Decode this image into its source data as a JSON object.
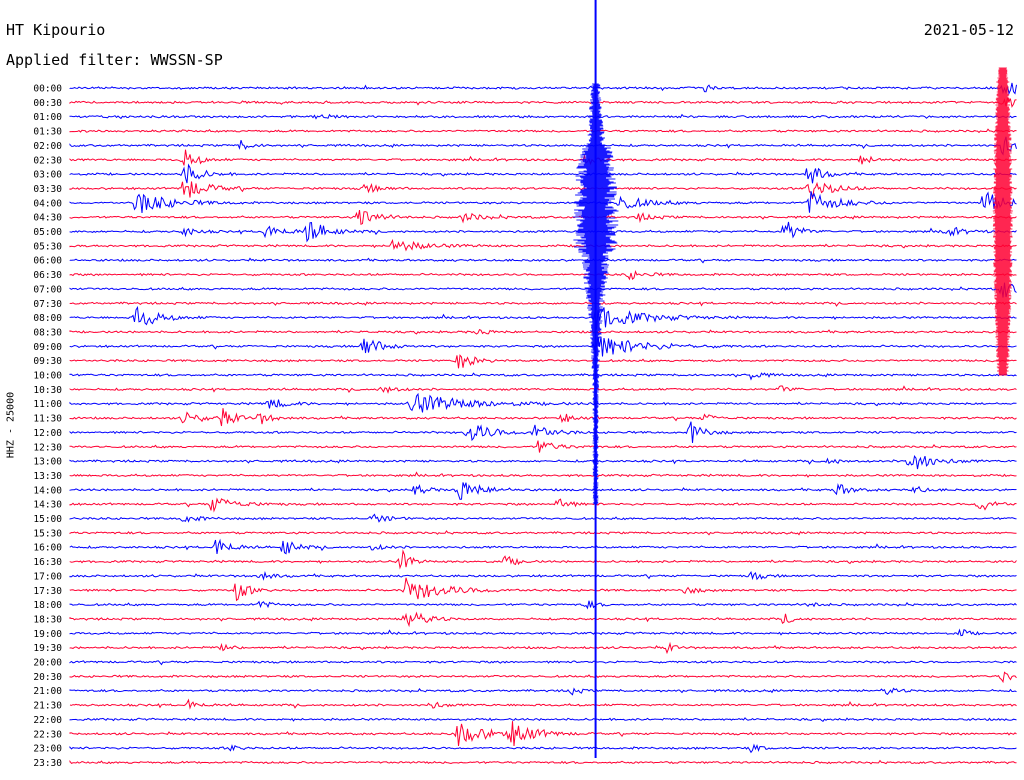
{
  "header": {
    "station": "HT Kipourio",
    "date": "2021-05-12",
    "filter": "Applied filter: WWSSN-SP"
  },
  "chart_data": {
    "type": "line",
    "ylabel": "HHZ - 25000",
    "row_labels": [
      "00:00",
      "00:30",
      "01:00",
      "01:30",
      "02:00",
      "02:30",
      "03:00",
      "03:30",
      "04:00",
      "04:30",
      "05:00",
      "05:30",
      "06:00",
      "06:30",
      "07:00",
      "07:30",
      "08:00",
      "08:30",
      "09:00",
      "09:30",
      "10:00",
      "10:30",
      "11:00",
      "11:30",
      "12:00",
      "12:30",
      "13:00",
      "13:30",
      "14:00",
      "14:30",
      "15:00",
      "15:30",
      "16:00",
      "16:30",
      "17:00",
      "17:30",
      "18:00",
      "18:30",
      "19:00",
      "19:30",
      "20:00",
      "20:30",
      "21:00",
      "21:30",
      "22:00",
      "22:30",
      "23:00",
      "23:30"
    ],
    "colors": [
      "#0000ff",
      "#ff0033"
    ],
    "events": [
      {
        "row": 0,
        "x": 0.985,
        "amp": 0.9,
        "dur": 0.015
      },
      {
        "row": 0,
        "x": 0.67,
        "amp": 0.35,
        "dur": 0.006
      },
      {
        "row": 1,
        "x": 0.985,
        "amp": 1.0,
        "dur": 0.01
      },
      {
        "row": 2,
        "x": 0.26,
        "amp": 0.35,
        "dur": 0.01
      },
      {
        "row": 4,
        "x": 0.18,
        "amp": 0.4,
        "dur": 0.01
      },
      {
        "row": 4,
        "x": 0.985,
        "amp": 1.0,
        "dur": 0.01
      },
      {
        "row": 5,
        "x": 0.12,
        "amp": 1.0,
        "dur": 0.012
      },
      {
        "row": 5,
        "x": 0.545,
        "amp": 0.5,
        "dur": 0.01
      },
      {
        "row": 5,
        "x": 0.835,
        "amp": 0.4,
        "dur": 0.012
      },
      {
        "row": 6,
        "x": 0.12,
        "amp": 1.0,
        "dur": 0.015
      },
      {
        "row": 6,
        "x": 0.78,
        "amp": 1.0,
        "dur": 0.012
      },
      {
        "row": 7,
        "x": 0.12,
        "amp": 1.0,
        "dur": 0.02
      },
      {
        "row": 7,
        "x": 0.31,
        "amp": 0.4,
        "dur": 0.015
      },
      {
        "row": 7,
        "x": 0.78,
        "amp": 1.0,
        "dur": 0.02
      },
      {
        "row": 8,
        "x": 0.07,
        "amp": 1.0,
        "dur": 0.03
      },
      {
        "row": 8,
        "x": 0.58,
        "amp": 0.6,
        "dur": 0.025
      },
      {
        "row": 8,
        "x": 0.78,
        "amp": 1.0,
        "dur": 0.025
      },
      {
        "row": 8,
        "x": 0.965,
        "amp": 1.0,
        "dur": 0.02
      },
      {
        "row": 9,
        "x": 0.305,
        "amp": 1.0,
        "dur": 0.015
      },
      {
        "row": 9,
        "x": 0.415,
        "amp": 0.35,
        "dur": 0.02
      },
      {
        "row": 9,
        "x": 0.6,
        "amp": 0.3,
        "dur": 0.015
      },
      {
        "row": 10,
        "x": 0.12,
        "amp": 0.4,
        "dur": 0.012
      },
      {
        "row": 10,
        "x": 0.205,
        "amp": 0.5,
        "dur": 0.02
      },
      {
        "row": 10,
        "x": 0.25,
        "amp": 1.0,
        "dur": 0.018
      },
      {
        "row": 10,
        "x": 0.755,
        "amp": 1.0,
        "dur": 0.012
      },
      {
        "row": 10,
        "x": 0.925,
        "amp": 0.4,
        "dur": 0.015
      },
      {
        "row": 11,
        "x": 0.34,
        "amp": 0.5,
        "dur": 0.03
      },
      {
        "row": 13,
        "x": 0.59,
        "amp": 0.4,
        "dur": 0.015
      },
      {
        "row": 14,
        "x": 0.985,
        "amp": 1.0,
        "dur": 0.01
      },
      {
        "row": 16,
        "x": 0.07,
        "amp": 1.0,
        "dur": 0.02
      },
      {
        "row": 16,
        "x": 0.555,
        "amp": 1.0,
        "dur": 0.04
      },
      {
        "row": 17,
        "x": 0.43,
        "amp": 0.3,
        "dur": 0.01
      },
      {
        "row": 18,
        "x": 0.31,
        "amp": 1.0,
        "dur": 0.015
      },
      {
        "row": 18,
        "x": 0.555,
        "amp": 1.0,
        "dur": 0.04
      },
      {
        "row": 19,
        "x": 0.41,
        "amp": 0.7,
        "dur": 0.015
      },
      {
        "row": 20,
        "x": 0.72,
        "amp": 0.4,
        "dur": 0.01
      },
      {
        "row": 21,
        "x": 0.33,
        "amp": 0.4,
        "dur": 0.01
      },
      {
        "row": 21,
        "x": 0.75,
        "amp": 0.35,
        "dur": 0.01
      },
      {
        "row": 22,
        "x": 0.21,
        "amp": 0.5,
        "dur": 0.015
      },
      {
        "row": 22,
        "x": 0.36,
        "amp": 0.9,
        "dur": 0.05
      },
      {
        "row": 23,
        "x": 0.16,
        "amp": 0.8,
        "dur": 0.012
      },
      {
        "row": 23,
        "x": 0.12,
        "amp": 0.5,
        "dur": 0.02
      },
      {
        "row": 23,
        "x": 0.2,
        "amp": 0.5,
        "dur": 0.012
      },
      {
        "row": 23,
        "x": 0.52,
        "amp": 0.4,
        "dur": 0.01
      },
      {
        "row": 23,
        "x": 0.67,
        "amp": 0.35,
        "dur": 0.01
      },
      {
        "row": 24,
        "x": 0.42,
        "amp": 1.0,
        "dur": 0.02
      },
      {
        "row": 24,
        "x": 0.49,
        "amp": 0.9,
        "dur": 0.015
      },
      {
        "row": 24,
        "x": 0.655,
        "amp": 1.0,
        "dur": 0.012
      },
      {
        "row": 25,
        "x": 0.495,
        "amp": 0.6,
        "dur": 0.015
      },
      {
        "row": 26,
        "x": 0.885,
        "amp": 1.0,
        "dur": 0.02
      },
      {
        "row": 26,
        "x": 0.8,
        "amp": 0.3,
        "dur": 0.01
      },
      {
        "row": 28,
        "x": 0.365,
        "amp": 0.5,
        "dur": 0.01
      },
      {
        "row": 28,
        "x": 0.41,
        "amp": 0.9,
        "dur": 0.02
      },
      {
        "row": 28,
        "x": 0.81,
        "amp": 0.6,
        "dur": 0.012
      },
      {
        "row": 28,
        "x": 0.89,
        "amp": 0.35,
        "dur": 0.01
      },
      {
        "row": 29,
        "x": 0.15,
        "amp": 0.7,
        "dur": 0.02
      },
      {
        "row": 29,
        "x": 0.515,
        "amp": 0.9,
        "dur": 0.008
      },
      {
        "row": 29,
        "x": 0.96,
        "amp": 0.6,
        "dur": 0.015
      },
      {
        "row": 30,
        "x": 0.12,
        "amp": 0.3,
        "dur": 0.015
      },
      {
        "row": 30,
        "x": 0.32,
        "amp": 0.35,
        "dur": 0.015
      },
      {
        "row": 32,
        "x": 0.155,
        "amp": 0.9,
        "dur": 0.012
      },
      {
        "row": 32,
        "x": 0.225,
        "amp": 0.8,
        "dur": 0.012
      },
      {
        "row": 32,
        "x": 0.32,
        "amp": 0.3,
        "dur": 0.01
      },
      {
        "row": 33,
        "x": 0.35,
        "amp": 1.0,
        "dur": 0.008
      },
      {
        "row": 33,
        "x": 0.46,
        "amp": 0.5,
        "dur": 0.01
      },
      {
        "row": 34,
        "x": 0.2,
        "amp": 0.35,
        "dur": 0.012
      },
      {
        "row": 34,
        "x": 0.72,
        "amp": 0.4,
        "dur": 0.01
      },
      {
        "row": 35,
        "x": 0.175,
        "amp": 0.9,
        "dur": 0.012
      },
      {
        "row": 35,
        "x": 0.355,
        "amp": 1.0,
        "dur": 0.035
      },
      {
        "row": 35,
        "x": 0.65,
        "amp": 0.4,
        "dur": 0.01
      },
      {
        "row": 36,
        "x": 0.2,
        "amp": 0.35,
        "dur": 0.01
      },
      {
        "row": 36,
        "x": 0.545,
        "amp": 0.4,
        "dur": 0.008
      },
      {
        "row": 36,
        "x": 0.78,
        "amp": 0.3,
        "dur": 0.008
      },
      {
        "row": 37,
        "x": 0.355,
        "amp": 1.0,
        "dur": 0.015
      },
      {
        "row": 37,
        "x": 0.755,
        "amp": 0.4,
        "dur": 0.008
      },
      {
        "row": 38,
        "x": 0.94,
        "amp": 0.4,
        "dur": 0.008
      },
      {
        "row": 39,
        "x": 0.16,
        "amp": 0.4,
        "dur": 0.008
      },
      {
        "row": 39,
        "x": 0.63,
        "amp": 0.4,
        "dur": 0.008
      },
      {
        "row": 41,
        "x": 0.985,
        "amp": 0.6,
        "dur": 0.008
      },
      {
        "row": 42,
        "x": 0.53,
        "amp": 0.35,
        "dur": 0.008
      },
      {
        "row": 42,
        "x": 0.86,
        "amp": 0.35,
        "dur": 0.01
      },
      {
        "row": 43,
        "x": 0.125,
        "amp": 0.4,
        "dur": 0.01
      },
      {
        "row": 43,
        "x": 0.38,
        "amp": 0.35,
        "dur": 0.01
      },
      {
        "row": 45,
        "x": 0.41,
        "amp": 1.0,
        "dur": 0.025
      },
      {
        "row": 45,
        "x": 0.465,
        "amp": 1.0,
        "dur": 0.022
      },
      {
        "row": 46,
        "x": 0.72,
        "amp": 0.35,
        "dur": 0.008
      },
      {
        "row": 46,
        "x": 0.17,
        "amp": 0.3,
        "dur": 0.008
      }
    ],
    "marker_line": {
      "x": 0.555,
      "color": "#0000ff"
    },
    "big_quake": {
      "x": 0.555,
      "row_start": 0,
      "row_end": 29
    }
  }
}
